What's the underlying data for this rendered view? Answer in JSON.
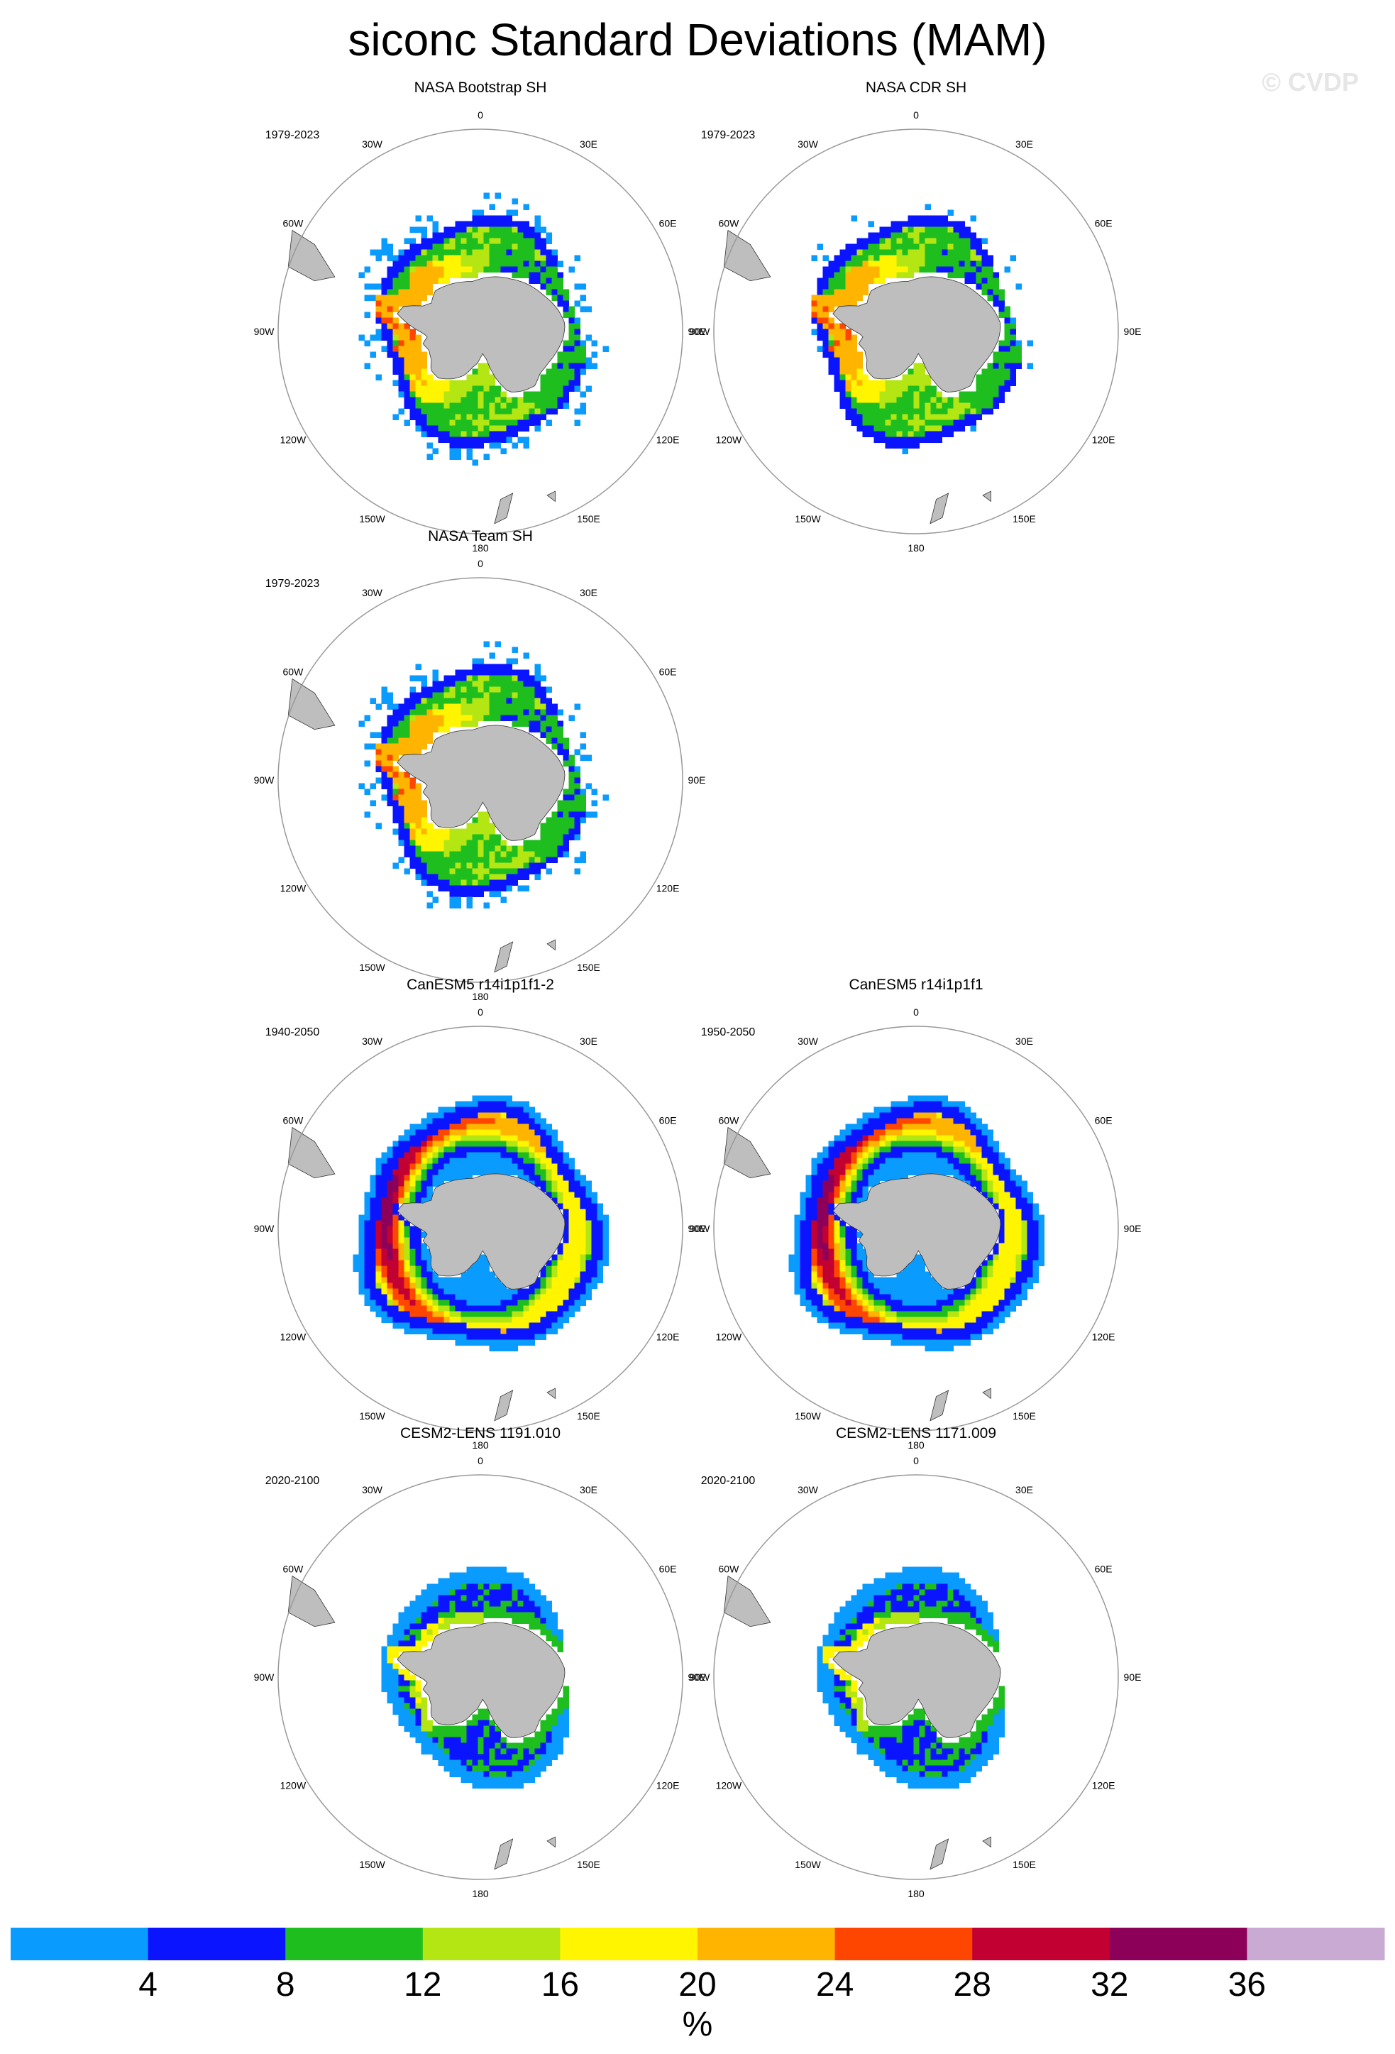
{
  "title": "siconc Standard Deviations (MAM)",
  "watermark": "© CVDP",
  "chart_data": {
    "type": "polar-map-panels",
    "units": "%",
    "lon_labels": [
      "0",
      "30E",
      "60E",
      "90E",
      "120E",
      "150E",
      "180",
      "150W",
      "120W",
      "90W",
      "60W",
      "30W"
    ],
    "panels": [
      {
        "title": "NASA Bootstrap SH",
        "years": "1979-2023",
        "pattern": "obs_bootstrap"
      },
      {
        "title": "NASA CDR SH",
        "years": "1979-2023",
        "pattern": "obs_cdr"
      },
      {
        "title": "NASA Team SH",
        "years": "1979-2023",
        "pattern": "obs_team"
      },
      {
        "title": "CanESM5 r14i1p1f1-2",
        "years": "1940-2050",
        "pattern": "canesm"
      },
      {
        "title": "CanESM5 r14i1p1f1",
        "years": "1950-2050",
        "pattern": "canesm"
      },
      {
        "title": "CESM2-LENS 1191.010",
        "years": "2020-2100",
        "pattern": "cesm"
      },
      {
        "title": "CESM2-LENS 1171.009",
        "years": "2020-2100",
        "pattern": "cesm"
      }
    ],
    "colorbar": {
      "levels": [
        4,
        8,
        12,
        16,
        20,
        24,
        28,
        32,
        36
      ],
      "colors": [
        "#0a9bff",
        "#0a14ff",
        "#1ebe1e",
        "#b4e614",
        "#fff500",
        "#ffb400",
        "#ff4600",
        "#c30032",
        "#8c005a",
        "#c8aad2"
      ],
      "label": "%"
    },
    "land_color": "#bebebe",
    "ice_free_color": "#ffffff"
  }
}
